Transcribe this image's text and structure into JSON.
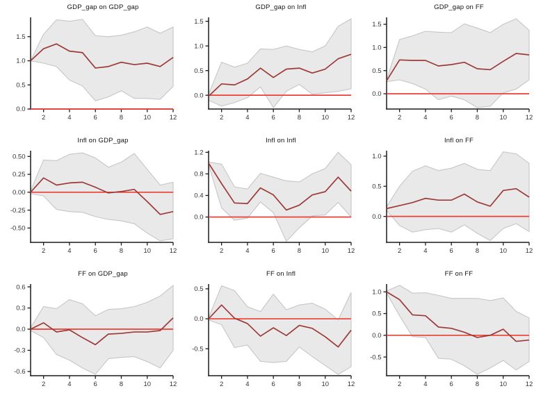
{
  "figure": {
    "description": "3x3 grid of VAR impulse response function plots with gray confidence bands, dark red impulse response lines and a red zero line",
    "rows": 3,
    "cols": 3
  },
  "colors": {
    "irf_line": "#9c3a38",
    "zero_line": "#ec3f33",
    "band_fill": "#e9e9e9",
    "band_edge": "#c6c6c6",
    "axis": "#1a1a1a",
    "tick_label": "#333333",
    "title": "#111111"
  },
  "chart_data": [
    {
      "type": "line",
      "title": "GDP_gap on GDP_gap",
      "x": [
        1,
        2,
        3,
        4,
        5,
        6,
        7,
        8,
        9,
        10,
        11,
        12
      ],
      "xticks": [
        2,
        4,
        6,
        8,
        10,
        12
      ],
      "xtick_labels": [
        "2",
        "4",
        "6",
        "8",
        "10",
        "12"
      ],
      "xlim": [
        1,
        12
      ],
      "ylim": [
        0.0,
        1.9
      ],
      "ytick_values": [
        0.0,
        0.5,
        1.0,
        1.5
      ],
      "ytick_labels": [
        "0.0",
        "0.5",
        "1.0",
        "1.5"
      ],
      "zero_line": 0,
      "series": {
        "irf": [
          1.0,
          1.25,
          1.35,
          1.2,
          1.17,
          0.85,
          0.88,
          0.97,
          0.92,
          0.95,
          0.88,
          1.07
        ],
        "upper": [
          1.0,
          1.55,
          1.85,
          1.82,
          1.86,
          1.52,
          1.5,
          1.53,
          1.6,
          1.7,
          1.57,
          1.7
        ],
        "lower": [
          1.0,
          0.95,
          0.88,
          0.6,
          0.48,
          0.17,
          0.25,
          0.38,
          0.22,
          0.22,
          0.2,
          0.47
        ]
      }
    },
    {
      "type": "line",
      "title": "GDP_gap on Infl",
      "x": [
        1,
        2,
        3,
        4,
        5,
        6,
        7,
        8,
        9,
        10,
        11,
        12
      ],
      "xticks": [
        2,
        4,
        6,
        8,
        10,
        12
      ],
      "xtick_labels": [
        "2",
        "4",
        "6",
        "8",
        "10",
        "12"
      ],
      "xlim": [
        1,
        12
      ],
      "ylim": [
        -0.28,
        1.58
      ],
      "ytick_values": [
        0.0,
        0.5,
        1.0,
        1.5
      ],
      "ytick_labels": [
        "0.0",
        "0.5",
        "1.0",
        "1.5"
      ],
      "zero_line": 0,
      "series": {
        "irf": [
          -0.02,
          0.23,
          0.21,
          0.33,
          0.55,
          0.36,
          0.53,
          0.55,
          0.45,
          0.53,
          0.74,
          0.83
        ],
        "upper": [
          0.02,
          0.67,
          0.57,
          0.65,
          0.94,
          0.93,
          1.0,
          0.93,
          0.88,
          1.0,
          1.4,
          1.55
        ],
        "lower": [
          -0.1,
          -0.22,
          -0.15,
          -0.05,
          0.17,
          -0.25,
          0.08,
          0.22,
          0.02,
          0.05,
          0.08,
          0.13
        ]
      }
    },
    {
      "type": "line",
      "title": "GDP_gap on FF",
      "x": [
        1,
        2,
        3,
        4,
        5,
        6,
        7,
        8,
        9,
        10,
        11,
        12
      ],
      "xticks": [
        2,
        4,
        6,
        8,
        10,
        12
      ],
      "xtick_labels": [
        "2",
        "4",
        "6",
        "8",
        "10",
        "12"
      ],
      "xlim": [
        1,
        12
      ],
      "ylim": [
        -0.33,
        1.65
      ],
      "ytick_values": [
        0.0,
        0.5,
        1.0,
        1.5
      ],
      "ytick_labels": [
        "0.0",
        "0.5",
        "1.0",
        "1.5"
      ],
      "zero_line": 0,
      "series": {
        "irf": [
          0.28,
          0.73,
          0.72,
          0.72,
          0.6,
          0.63,
          0.68,
          0.54,
          0.52,
          0.7,
          0.87,
          0.84
        ],
        "upper": [
          0.3,
          1.17,
          1.25,
          1.35,
          1.33,
          1.32,
          1.51,
          1.42,
          1.32,
          1.5,
          1.62,
          1.37
        ],
        "lower": [
          0.26,
          0.3,
          0.22,
          0.1,
          -0.13,
          -0.05,
          -0.13,
          -0.3,
          -0.27,
          0.02,
          0.1,
          0.3
        ]
      }
    },
    {
      "type": "line",
      "title": "Infl on GDP_gap",
      "x": [
        1,
        2,
        3,
        4,
        5,
        6,
        7,
        8,
        9,
        10,
        11,
        12
      ],
      "xticks": [
        2,
        4,
        6,
        8,
        10,
        12
      ],
      "xtick_labels": [
        "2",
        "4",
        "6",
        "8",
        "10",
        "12"
      ],
      "xlim": [
        1,
        12
      ],
      "ylim": [
        -0.7,
        0.58
      ],
      "ytick_values": [
        -0.5,
        -0.25,
        0.0,
        0.25,
        0.5
      ],
      "ytick_labels": [
        "-0.50",
        "-0.25",
        "0.00",
        "0.25",
        "0.50"
      ],
      "zero_line": 0,
      "series": {
        "irf": [
          0.0,
          0.2,
          0.1,
          0.13,
          0.14,
          0.07,
          -0.01,
          0.01,
          0.04,
          -0.13,
          -0.31,
          -0.27
        ],
        "upper": [
          0.02,
          0.45,
          0.44,
          0.53,
          0.55,
          0.48,
          0.35,
          0.42,
          0.54,
          0.32,
          0.1,
          0.14
        ],
        "lower": [
          -0.02,
          -0.05,
          -0.24,
          -0.27,
          -0.28,
          -0.34,
          -0.38,
          -0.4,
          -0.44,
          -0.57,
          -0.68,
          -0.65
        ]
      }
    },
    {
      "type": "line",
      "title": "Infl on Infl",
      "x": [
        1,
        2,
        3,
        4,
        5,
        6,
        7,
        8,
        9,
        10,
        11,
        12
      ],
      "xticks": [
        2,
        4,
        6,
        8,
        10,
        12
      ],
      "xtick_labels": [
        "2",
        "4",
        "6",
        "8",
        "10",
        "12"
      ],
      "xlim": [
        1,
        12
      ],
      "ylim": [
        -0.47,
        1.23
      ],
      "ytick_values": [
        0.0,
        0.4,
        0.8,
        1.2
      ],
      "ytick_labels": [
        "0.0",
        "0.4",
        "0.8",
        "1.2"
      ],
      "zero_line": 0,
      "series": {
        "irf": [
          1.0,
          0.62,
          0.26,
          0.25,
          0.54,
          0.41,
          0.13,
          0.22,
          0.41,
          0.47,
          0.74,
          0.48
        ],
        "upper": [
          1.02,
          0.98,
          0.56,
          0.52,
          0.81,
          0.74,
          0.67,
          0.65,
          0.8,
          0.9,
          1.2,
          0.97
        ],
        "lower": [
          0.97,
          0.17,
          -0.06,
          -0.02,
          0.28,
          0.08,
          -0.45,
          -0.2,
          0.02,
          0.04,
          0.27,
          0.0
        ]
      }
    },
    {
      "type": "line",
      "title": "Infl on FF",
      "x": [
        1,
        2,
        3,
        4,
        5,
        6,
        7,
        8,
        9,
        10,
        11,
        12
      ],
      "xticks": [
        2,
        4,
        6,
        8,
        10,
        12
      ],
      "xtick_labels": [
        "2",
        "4",
        "6",
        "8",
        "10",
        "12"
      ],
      "xlim": [
        1,
        12
      ],
      "ylim": [
        -0.43,
        1.09
      ],
      "ytick_values": [
        0.0,
        0.5,
        1.0
      ],
      "ytick_labels": [
        "0.0",
        "0.5",
        "1.0"
      ],
      "zero_line": 0,
      "series": {
        "irf": [
          0.13,
          0.18,
          0.23,
          0.3,
          0.27,
          0.27,
          0.37,
          0.24,
          0.17,
          0.43,
          0.46,
          0.32
        ],
        "upper": [
          0.16,
          0.5,
          0.75,
          0.84,
          0.76,
          0.8,
          0.88,
          0.78,
          0.76,
          1.07,
          1.04,
          0.88
        ],
        "lower": [
          0.1,
          -0.15,
          -0.26,
          -0.22,
          -0.2,
          -0.26,
          -0.14,
          -0.28,
          -0.4,
          -0.2,
          -0.12,
          -0.25
        ]
      }
    },
    {
      "type": "line",
      "title": "FF on GDP_gap",
      "x": [
        1,
        2,
        3,
        4,
        5,
        6,
        7,
        8,
        9,
        10,
        11,
        12
      ],
      "xticks": [
        2,
        4,
        6,
        8,
        10,
        12
      ],
      "xtick_labels": [
        "2",
        "4",
        "6",
        "8",
        "10",
        "12"
      ],
      "xlim": [
        1,
        12
      ],
      "ylim": [
        -0.66,
        0.64
      ],
      "ytick_values": [
        -0.6,
        -0.3,
        0.0,
        0.3,
        0.6
      ],
      "ytick_labels": [
        "-0.6",
        "-0.3",
        "0.0",
        "0.3",
        "0.6"
      ],
      "zero_line": 0,
      "series": {
        "irf": [
          0.0,
          0.09,
          -0.04,
          -0.01,
          -0.12,
          -0.22,
          -0.07,
          -0.06,
          -0.04,
          -0.04,
          -0.02,
          0.16
        ],
        "upper": [
          0.02,
          0.32,
          0.29,
          0.42,
          0.36,
          0.19,
          0.28,
          0.29,
          0.32,
          0.38,
          0.47,
          0.62
        ],
        "lower": [
          -0.02,
          -0.12,
          -0.36,
          -0.44,
          -0.55,
          -0.64,
          -0.42,
          -0.4,
          -0.39,
          -0.46,
          -0.55,
          -0.3
        ]
      }
    },
    {
      "type": "line",
      "title": "FF on Infl",
      "x": [
        1,
        2,
        3,
        4,
        5,
        6,
        7,
        8,
        9,
        10,
        11,
        12
      ],
      "xticks": [
        2,
        4,
        6,
        8,
        10,
        12
      ],
      "xtick_labels": [
        "2",
        "4",
        "6",
        "8",
        "10",
        "12"
      ],
      "xlim": [
        1,
        12
      ],
      "ylim": [
        -0.95,
        0.58
      ],
      "ytick_values": [
        -0.5,
        0.0,
        0.5
      ],
      "ytick_labels": [
        "-0.5",
        "0.0",
        "0.5"
      ],
      "zero_line": 0,
      "series": {
        "irf": [
          0.0,
          0.23,
          0.01,
          -0.08,
          -0.29,
          -0.15,
          -0.28,
          -0.11,
          -0.16,
          -0.3,
          -0.47,
          -0.19
        ],
        "upper": [
          0.02,
          0.55,
          0.47,
          0.2,
          0.12,
          0.41,
          0.15,
          0.23,
          0.26,
          0.16,
          -0.02,
          0.44
        ],
        "lower": [
          -0.02,
          -0.1,
          -0.48,
          -0.44,
          -0.71,
          -0.73,
          -0.71,
          -0.47,
          -0.63,
          -0.78,
          -0.93,
          -0.8
        ]
      }
    },
    {
      "type": "line",
      "title": "FF on FF",
      "x": [
        1,
        2,
        3,
        4,
        5,
        6,
        7,
        8,
        9,
        10,
        11,
        12
      ],
      "xticks": [
        2,
        4,
        6,
        8,
        10,
        12
      ],
      "xtick_labels": [
        "2",
        "4",
        "6",
        "8",
        "10",
        "12"
      ],
      "xlim": [
        1,
        12
      ],
      "ylim": [
        -0.93,
        1.18
      ],
      "ytick_values": [
        -0.5,
        0.0,
        0.5,
        1.0
      ],
      "ytick_labels": [
        "-0.5",
        "0.0",
        "0.5",
        "1.0"
      ],
      "zero_line": 0,
      "series": {
        "irf": [
          1.0,
          0.82,
          0.47,
          0.45,
          0.19,
          0.16,
          0.07,
          -0.05,
          0.0,
          0.14,
          -0.14,
          -0.11
        ],
        "upper": [
          1.02,
          1.15,
          0.97,
          0.98,
          0.92,
          0.85,
          0.85,
          0.85,
          0.8,
          0.86,
          0.55,
          0.4
        ],
        "lower": [
          0.97,
          0.45,
          -0.03,
          -0.05,
          -0.53,
          -0.55,
          -0.7,
          -0.9,
          -0.75,
          -0.58,
          -0.8,
          -0.6
        ]
      }
    }
  ]
}
